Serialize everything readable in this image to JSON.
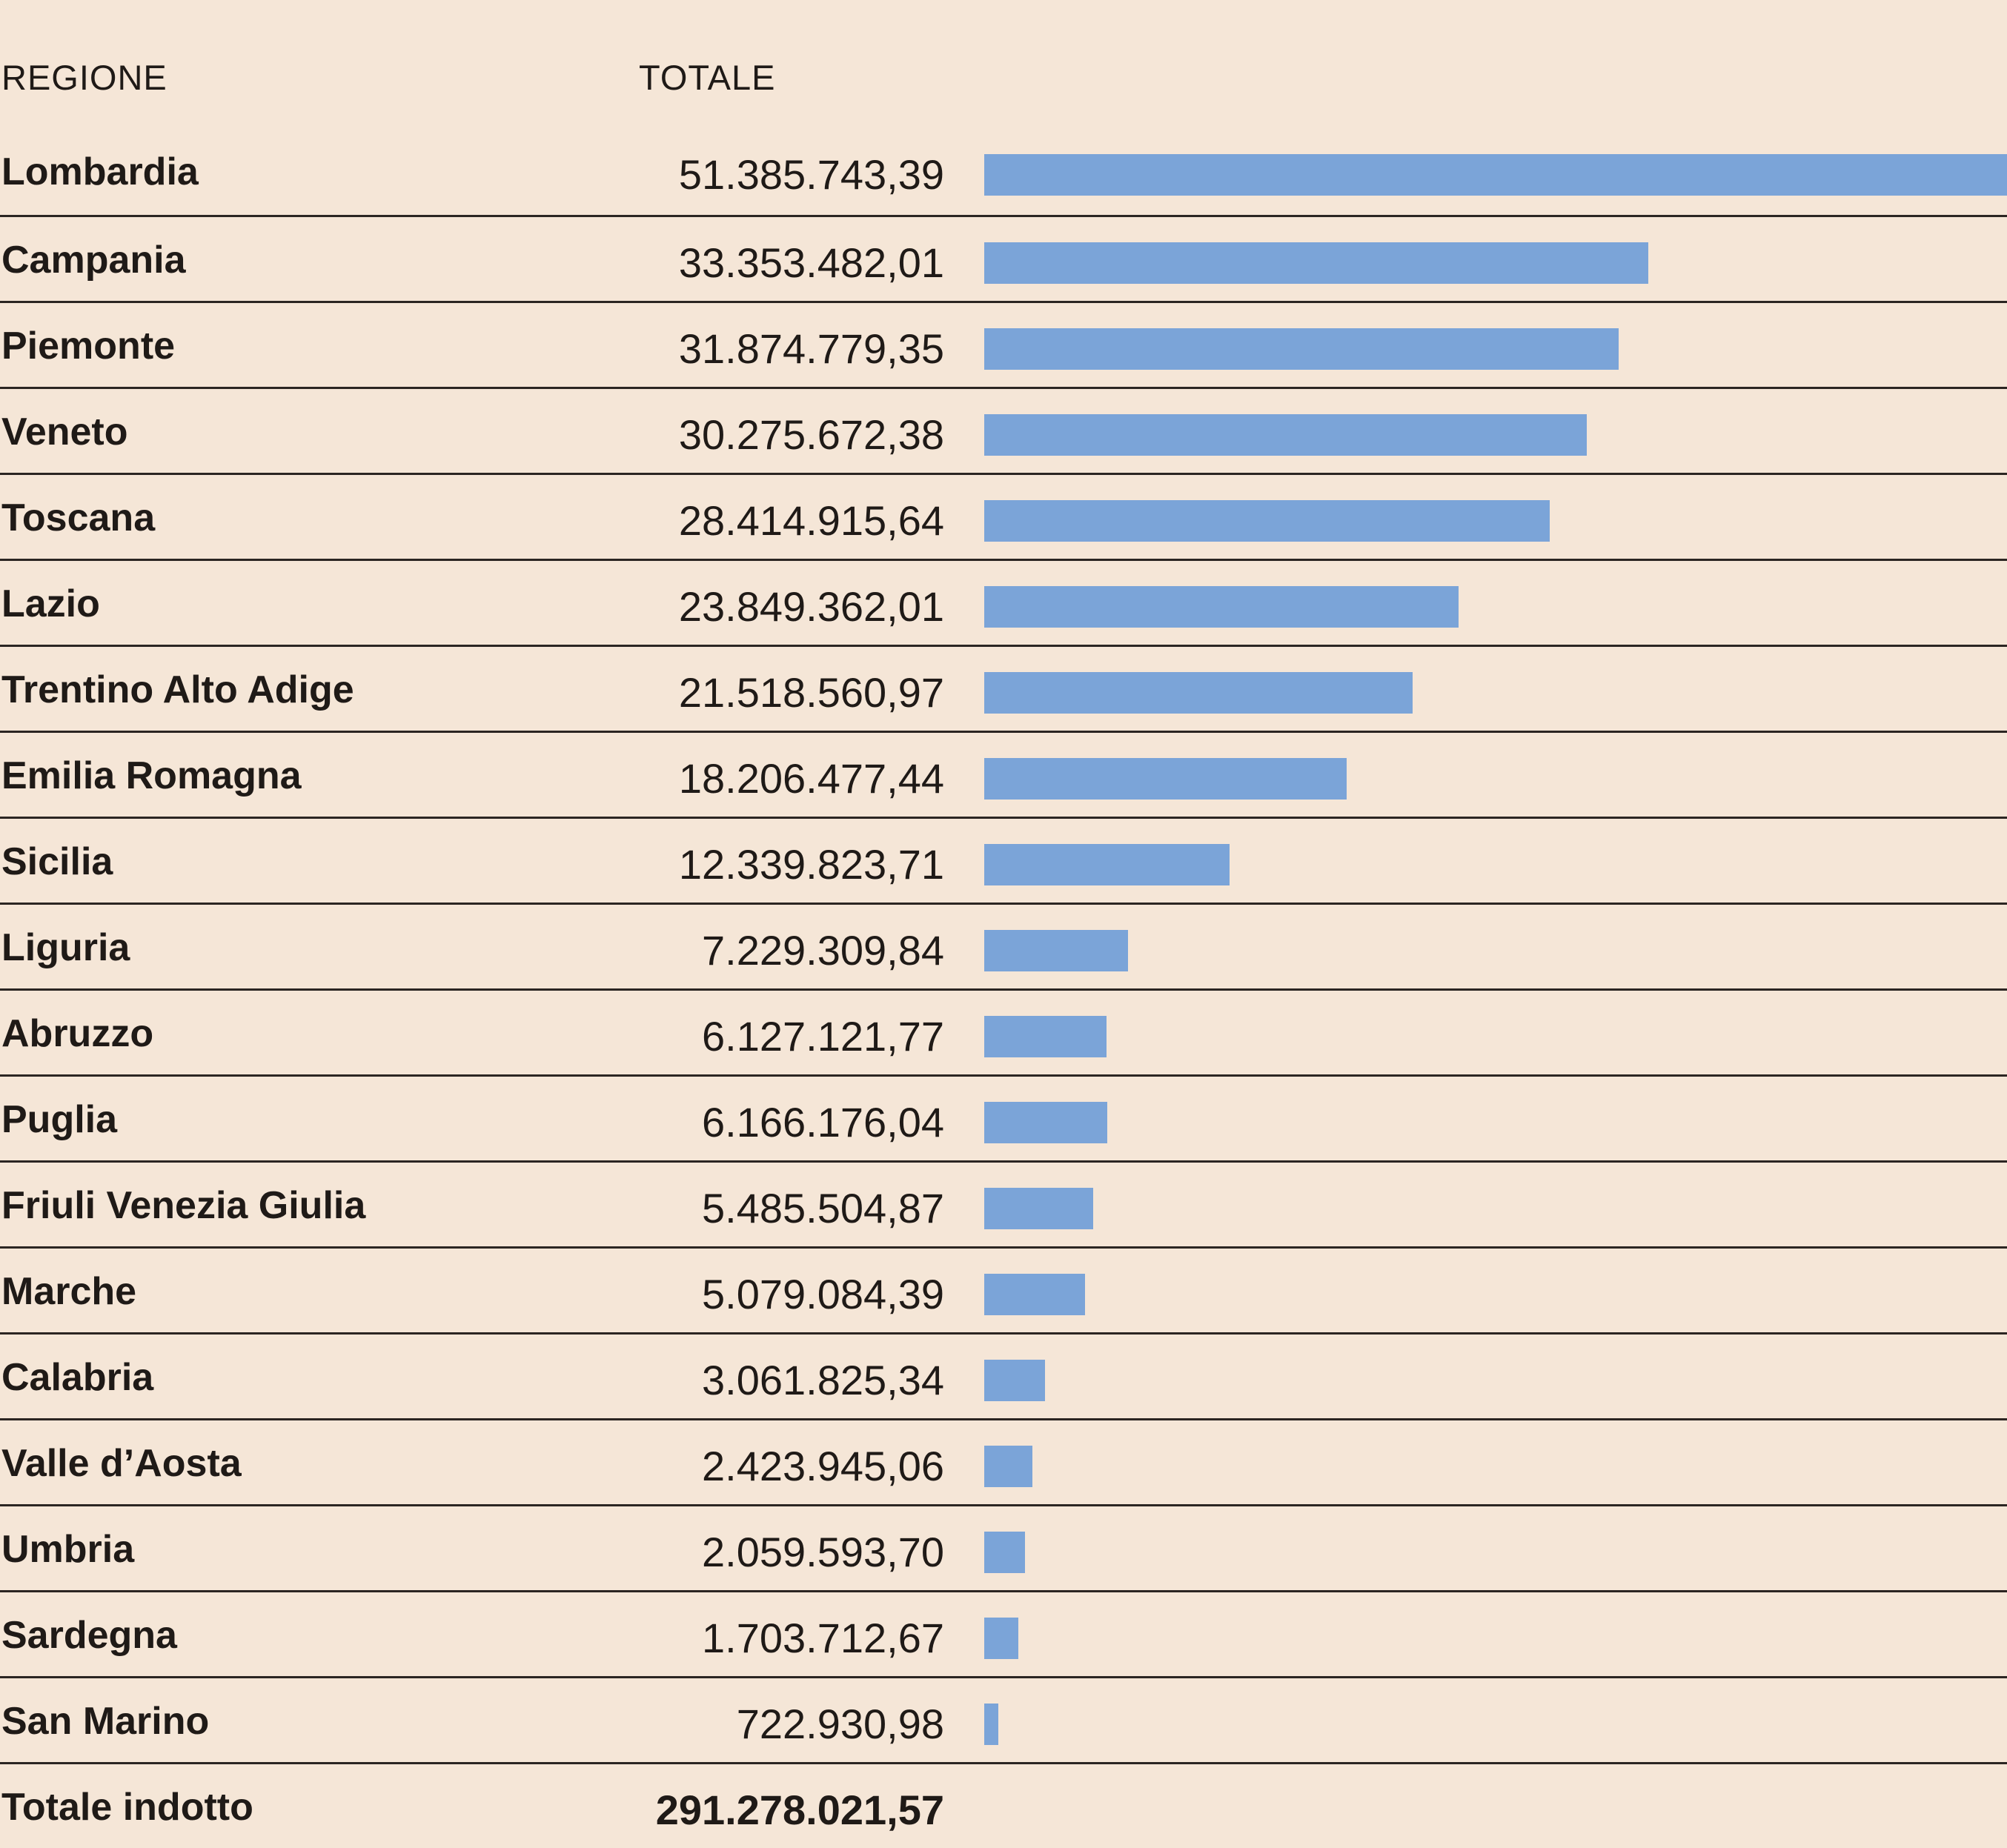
{
  "header": {
    "region_label": "REGIONE",
    "total_label": "TOTALE"
  },
  "colors": {
    "background": "#f5e6d7",
    "bar": "#7ba4d8",
    "text": "#1f1a17",
    "rule": "#2b2522"
  },
  "chart_data": {
    "type": "bar",
    "orientation": "horizontal",
    "title": "",
    "xlabel": "",
    "ylabel": "",
    "categories": [
      "Lombardia",
      "Campania",
      "Piemonte",
      "Veneto",
      "Toscana",
      "Lazio",
      "Trentino Alto Adige",
      "Emilia Romagna",
      "Sicilia",
      "Liguria",
      "Abruzzo",
      "Puglia",
      "Friuli Venezia Giulia",
      "Marche",
      "Calabria",
      "Valle d’Aosta",
      "Umbria",
      "Sardegna",
      "San Marino"
    ],
    "values": [
      51385743.39,
      33353482.01,
      31874779.35,
      30275672.38,
      28414915.64,
      23849362.01,
      21518560.97,
      18206477.44,
      12339823.71,
      7229309.84,
      6127121.77,
      6166176.04,
      5485504.87,
      5079084.39,
      3061825.34,
      2423945.06,
      2059593.7,
      1703712.67,
      722930.98
    ],
    "value_labels": [
      "51.385.743,39",
      "33.353.482,01",
      "31.874.779,35",
      "30.275.672,38",
      "28.414.915,64",
      "23.849.362,01",
      "21.518.560,97",
      "18.206.477,44",
      "12.339.823,71",
      "7.229.309,84",
      "6.127.121,77",
      "6.166.176,04",
      "5.485.504,87",
      "5.079.084,39",
      "3.061.825,34",
      "2.423.945,06",
      "2.059.593,70",
      "1.703.712,67",
      "722.930,98"
    ],
    "xlim": [
      0,
      51385743.39
    ],
    "grid": false,
    "legend": "none"
  },
  "total": {
    "label": "Totale indotto",
    "value": "291.278.021,57"
  }
}
